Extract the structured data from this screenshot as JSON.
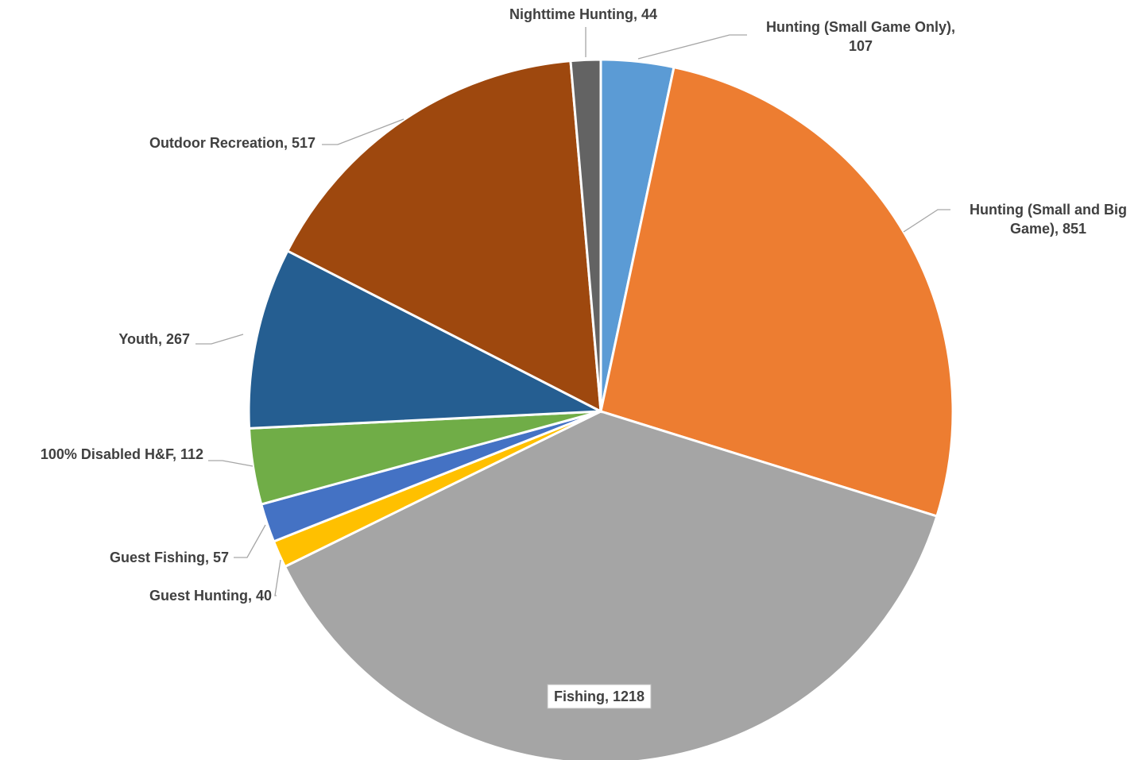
{
  "chart_data": {
    "type": "pie",
    "title": "",
    "start_angle_deg": 0,
    "direction": "clockwise",
    "series": [
      {
        "categories": [
          "Hunting (Small Game Only)",
          "Hunting (Small and Big Game)",
          "Fishing",
          "Guest Hunting",
          "Guest Fishing",
          "100% Disabled H&F",
          "Youth",
          "Outdoor Recreation",
          "Nighttime Hunting"
        ],
        "values": [
          107,
          851,
          1218,
          40,
          57,
          112,
          267,
          517,
          44
        ],
        "colors": [
          "#5b9bd5",
          "#ed7d31",
          "#a5a5a5",
          "#ffc000",
          "#4472c4",
          "#70ad47",
          "#255e91",
          "#9e480e",
          "#636363"
        ]
      }
    ],
    "data_labels": [
      {
        "lines": [
          "Hunting (Small Game Only),",
          "107"
        ]
      },
      {
        "lines": [
          "Hunting (Small and Big",
          "Game), 851"
        ]
      },
      {
        "lines": [
          "Fishing, 1218"
        ]
      },
      {
        "lines": [
          "Guest Hunting, 40"
        ]
      },
      {
        "lines": [
          "Guest Fishing, 57"
        ]
      },
      {
        "lines": [
          "100% Disabled H&F, 112"
        ]
      },
      {
        "lines": [
          "Youth, 267"
        ]
      },
      {
        "lines": [
          "Outdoor Recreation, 517"
        ]
      },
      {
        "lines": [
          "Nighttime Hunting, 44"
        ]
      }
    ],
    "legend": "none"
  }
}
